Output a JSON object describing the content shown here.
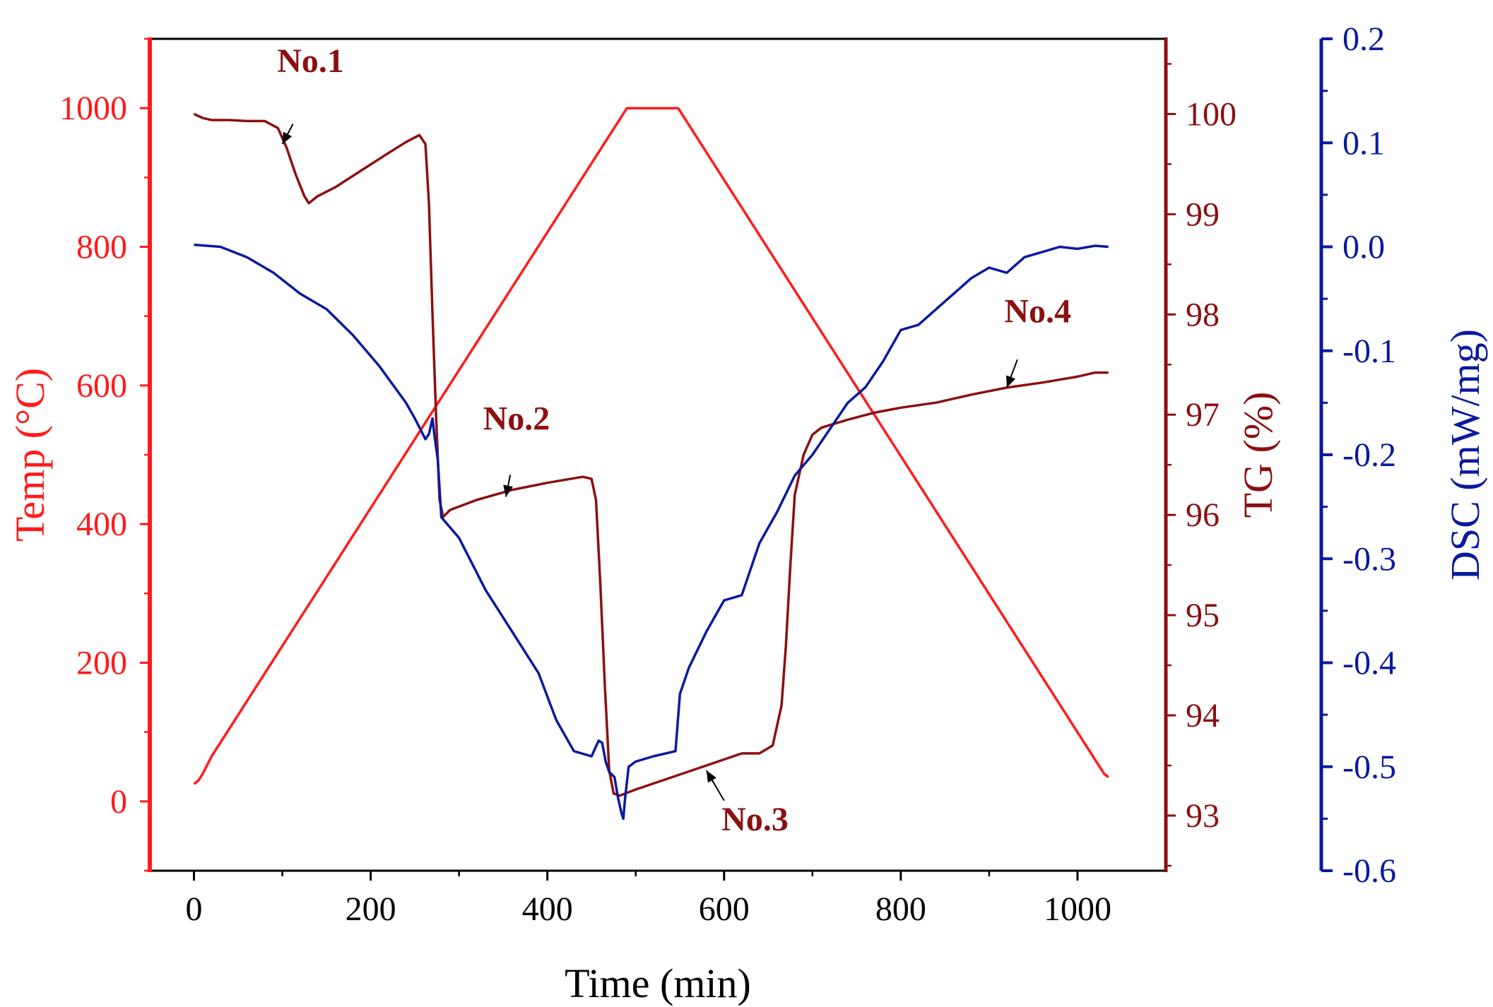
{
  "chart_data": {
    "type": "line",
    "title": "",
    "xlabel": "Time (min)",
    "xlim": [
      -50,
      1100
    ],
    "xticks": [
      0,
      200,
      400,
      600,
      800,
      1000
    ],
    "x_tick_labels": [
      "0",
      "200",
      "400",
      "600",
      "800",
      "1000"
    ],
    "grid": false,
    "colors": {
      "temp": "#ff1a1a",
      "tg": "#8b1010",
      "dsc": "#0a1a9e",
      "annot": "#8b1010",
      "frame": "#000000"
    },
    "axes": {
      "temp": {
        "label": "Temp (°C)",
        "side": "left",
        "ylim": [
          -100,
          1100
        ],
        "ticks": [
          0,
          200,
          400,
          600,
          800,
          1000
        ],
        "tick_labels": [
          "0",
          "200",
          "400",
          "600",
          "800",
          "1000"
        ]
      },
      "tg": {
        "label": "TG (%)",
        "side": "right",
        "ylim": [
          92.45,
          100.75
        ],
        "ticks": [
          93,
          94,
          95,
          96,
          97,
          98,
          99,
          100
        ],
        "tick_labels": [
          "93",
          "94",
          "95",
          "96",
          "97",
          "98",
          "99",
          "100"
        ]
      },
      "dsc": {
        "label": "DSC (mW/mg)",
        "side": "right-offset",
        "ylim": [
          -0.6,
          0.2
        ],
        "ticks": [
          -0.6,
          -0.5,
          -0.4,
          -0.3,
          -0.2,
          -0.1,
          0.0,
          0.1,
          0.2
        ],
        "tick_labels": [
          "-0.6",
          "-0.5",
          "-0.4",
          "-0.3",
          "-0.2",
          "-0.1",
          "0.0",
          "0.1",
          "0.2"
        ]
      }
    },
    "series": [
      {
        "name": "Temp",
        "axis": "temp",
        "x": [
          0,
          5,
          10,
          20,
          490,
          548,
          1030,
          1035
        ],
        "y": [
          25,
          30,
          40,
          65,
          1000,
          1000,
          40,
          35
        ]
      },
      {
        "name": "TG",
        "axis": "tg",
        "x": [
          0,
          10,
          20,
          40,
          60,
          80,
          95,
          105,
          115,
          125,
          130,
          140,
          160,
          190,
          220,
          240,
          255,
          262,
          266,
          270,
          274,
          278,
          282,
          290,
          320,
          360,
          400,
          440,
          450,
          455,
          460,
          465,
          470,
          475,
          482,
          500,
          540,
          580,
          620,
          640,
          655,
          665,
          670,
          675,
          680,
          690,
          700,
          710,
          740,
          770,
          800,
          840,
          880,
          920,
          960,
          1000,
          1020,
          1035
        ],
        "y": [
          100.0,
          99.96,
          99.94,
          99.94,
          99.93,
          99.93,
          99.86,
          99.66,
          99.4,
          99.18,
          99.11,
          99.18,
          99.27,
          99.44,
          99.61,
          99.72,
          99.79,
          99.7,
          99.1,
          98.0,
          97.0,
          96.15,
          95.98,
          96.05,
          96.15,
          96.25,
          96.32,
          96.38,
          96.36,
          96.15,
          95.3,
          94.3,
          93.45,
          93.22,
          93.2,
          93.26,
          93.38,
          93.5,
          93.62,
          93.62,
          93.7,
          94.1,
          94.7,
          95.5,
          96.2,
          96.6,
          96.8,
          96.87,
          96.95,
          97.02,
          97.07,
          97.12,
          97.2,
          97.27,
          97.32,
          97.38,
          97.42,
          97.42
        ]
      },
      {
        "name": "DSC",
        "axis": "dsc",
        "x": [
          0,
          30,
          60,
          90,
          120,
          150,
          180,
          210,
          240,
          250,
          262,
          266,
          270,
          272,
          276,
          280,
          300,
          330,
          360,
          390,
          410,
          430,
          450,
          458,
          462,
          466,
          470,
          476,
          480,
          484,
          486,
          488,
          492,
          500,
          520,
          545,
          550,
          560,
          580,
          600,
          620,
          640,
          660,
          680,
          700,
          720,
          740,
          760,
          780,
          800,
          820,
          840,
          860,
          880,
          900,
          920,
          940,
          960,
          980,
          1000,
          1020,
          1035
        ],
        "y": [
          0.002,
          0.0,
          -0.01,
          -0.025,
          -0.045,
          -0.06,
          -0.085,
          -0.115,
          -0.15,
          -0.165,
          -0.185,
          -0.18,
          -0.165,
          -0.18,
          -0.205,
          -0.26,
          -0.28,
          -0.33,
          -0.37,
          -0.41,
          -0.455,
          -0.485,
          -0.49,
          -0.475,
          -0.477,
          -0.495,
          -0.505,
          -0.51,
          -0.53,
          -0.545,
          -0.55,
          -0.53,
          -0.5,
          -0.495,
          -0.49,
          -0.485,
          -0.43,
          -0.405,
          -0.37,
          -0.34,
          -0.335,
          -0.285,
          -0.255,
          -0.22,
          -0.2,
          -0.175,
          -0.15,
          -0.135,
          -0.11,
          -0.08,
          -0.075,
          -0.06,
          -0.045,
          -0.03,
          -0.02,
          -0.025,
          -0.01,
          -0.005,
          0.0,
          -0.002,
          0.001,
          0.0
        ]
      }
    ],
    "annotations": [
      {
        "text": "No.1",
        "label_at": [
          132,
          100.42
        ],
        "arrow_from": [
          112,
          99.9
        ],
        "arrow_to": [
          100,
          99.7
        ],
        "axis": "tg"
      },
      {
        "text": "No.2",
        "label_at": [
          365,
          96.85
        ],
        "arrow_from": [
          358,
          96.4
        ],
        "arrow_to": [
          353,
          96.18
        ],
        "axis": "tg"
      },
      {
        "text": "No.3",
        "label_at": [
          635,
          92.85
        ],
        "arrow_from": [
          600,
          93.15
        ],
        "arrow_to": [
          580,
          93.45
        ],
        "axis": "tg"
      },
      {
        "text": "No.4",
        "label_at": [
          955,
          97.92
        ],
        "arrow_from": [
          932,
          97.55
        ],
        "arrow_to": [
          920,
          97.27
        ],
        "axis": "tg"
      }
    ]
  }
}
